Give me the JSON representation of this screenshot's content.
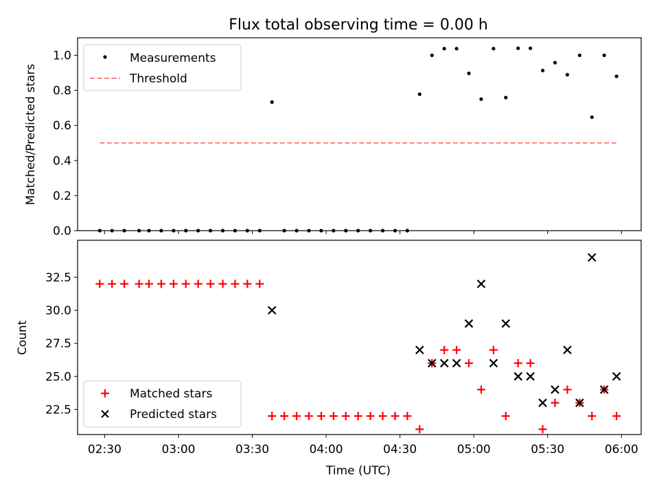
{
  "chart_data": [
    {
      "type": "scatter",
      "title": "Flux total observing time = 0.00 h",
      "ylabel": "Matched/Predicted stars",
      "xlim": [
        "02:19",
        "06:08"
      ],
      "ylim": [
        0,
        1.1
      ],
      "x_ticks": [
        "02:30",
        "03:00",
        "03:30",
        "04:00",
        "04:30",
        "05:00",
        "05:30",
        "06:00"
      ],
      "y_ticks": [
        "0.0",
        "0.2",
        "0.4",
        "0.6",
        "0.8",
        "1.0"
      ],
      "legend_position": "upper-left",
      "series": [
        {
          "name": "Measurements",
          "marker": "dot",
          "color": "#000000",
          "x": [
            "02:28",
            "02:33",
            "02:38",
            "02:44",
            "02:48",
            "02:53",
            "02:58",
            "03:03",
            "03:08",
            "03:13",
            "03:18",
            "03:23",
            "03:28",
            "03:33",
            "03:38",
            "03:43",
            "03:48",
            "03:53",
            "03:58",
            "04:03",
            "04:08",
            "04:13",
            "04:18",
            "04:23",
            "04:28",
            "04:33",
            "04:38",
            "04:43",
            "04:48",
            "04:53",
            "04:58",
            "05:03",
            "05:08",
            "05:13",
            "05:18",
            "05:23",
            "05:28",
            "05:33",
            "05:38",
            "05:43",
            "05:48",
            "05:53",
            "05:58"
          ],
          "y": [
            0,
            0,
            0,
            0,
            0,
            0,
            0,
            0,
            0,
            0,
            0,
            0,
            0,
            0,
            0.733,
            0,
            0,
            0,
            0,
            0,
            0,
            0,
            0,
            0,
            0,
            0,
            0.778,
            1.0,
            1.038,
            1.038,
            0.897,
            0.75,
            1.038,
            0.759,
            1.04,
            1.04,
            0.913,
            0.958,
            0.889,
            1.0,
            0.647,
            1.0,
            0.88
          ]
        },
        {
          "name": "Threshold",
          "marker": "dashed-line",
          "color": "#ff7f7f",
          "x": [
            "02:28",
            "05:58"
          ],
          "y": [
            0.5,
            0.5
          ]
        }
      ]
    },
    {
      "type": "scatter",
      "ylabel": "Count",
      "xlabel": "Time (UTC)",
      "xlim": [
        "02:19",
        "06:08"
      ],
      "ylim": [
        20.6,
        35.3
      ],
      "x_ticks": [
        "02:30",
        "03:00",
        "03:30",
        "04:00",
        "04:30",
        "05:00",
        "05:30",
        "06:00"
      ],
      "y_ticks": [
        "22.5",
        "25.0",
        "27.5",
        "30.0",
        "32.5"
      ],
      "legend_position": "lower-left",
      "series": [
        {
          "name": "Matched stars",
          "marker": "plus",
          "color": "#ff0000",
          "x": [
            "02:28",
            "02:33",
            "02:38",
            "02:44",
            "02:48",
            "02:53",
            "02:58",
            "03:03",
            "03:08",
            "03:13",
            "03:18",
            "03:23",
            "03:28",
            "03:33",
            "03:38",
            "03:43",
            "03:48",
            "03:53",
            "03:58",
            "04:03",
            "04:08",
            "04:13",
            "04:18",
            "04:23",
            "04:28",
            "04:33",
            "04:38",
            "04:43",
            "04:48",
            "04:53",
            "04:58",
            "05:03",
            "05:08",
            "05:13",
            "05:18",
            "05:23",
            "05:28",
            "05:33",
            "05:38",
            "05:43",
            "05:48",
            "05:53",
            "05:58"
          ],
          "y": [
            32,
            32,
            32,
            32,
            32,
            32,
            32,
            32,
            32,
            32,
            32,
            32,
            32,
            32,
            22,
            22,
            22,
            22,
            22,
            22,
            22,
            22,
            22,
            22,
            22,
            22,
            21,
            26,
            27,
            27,
            26,
            24,
            27,
            22,
            26,
            26,
            21,
            23,
            24,
            23,
            22,
            24,
            22
          ]
        },
        {
          "name": "Predicted stars",
          "marker": "x",
          "color": "#000000",
          "x": [
            "03:38",
            "04:38",
            "04:43",
            "04:48",
            "04:53",
            "04:58",
            "05:03",
            "05:08",
            "05:13",
            "05:18",
            "05:23",
            "05:28",
            "05:33",
            "05:38",
            "05:43",
            "05:48",
            "05:53",
            "05:58"
          ],
          "y": [
            30,
            27,
            26,
            26,
            26,
            29,
            32,
            26,
            29,
            25,
            25,
            23,
            24,
            27,
            23,
            34,
            24,
            25
          ]
        }
      ]
    }
  ]
}
